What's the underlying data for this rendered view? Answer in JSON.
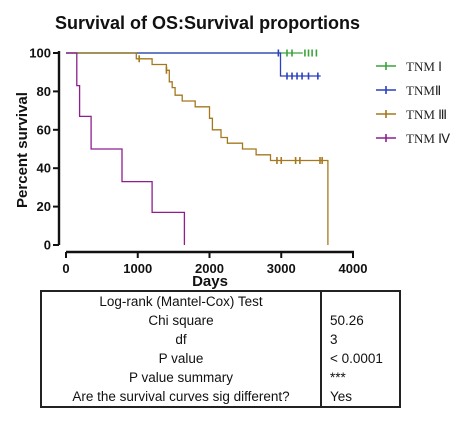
{
  "chart_data": {
    "type": "line",
    "title": "Survival of OS:Survival proportions",
    "xlabel": "Days",
    "ylabel": "Percent survival",
    "xlim": [
      0,
      4000
    ],
    "ylim": [
      0,
      100
    ],
    "x_ticks": [
      0,
      1000,
      2000,
      3000,
      4000
    ],
    "y_ticks": [
      0,
      20,
      40,
      60,
      80,
      100
    ],
    "grid": false,
    "legend_position": "right",
    "series": [
      {
        "name": "TNM Ⅰ",
        "color": "#3aa33a",
        "steps": [
          [
            0,
            100
          ],
          [
            3300,
            100
          ]
        ],
        "censored": [
          [
            3080,
            100
          ],
          [
            3150,
            100
          ],
          [
            3330,
            100
          ],
          [
            3380,
            100
          ],
          [
            3430,
            100
          ],
          [
            3490,
            100
          ]
        ]
      },
      {
        "name": "TNMⅡ",
        "color": "#2c3fbf",
        "steps": [
          [
            0,
            100
          ],
          [
            2990,
            100
          ],
          [
            2990,
            88
          ],
          [
            3550,
            88
          ]
        ],
        "censored": [
          [
            2960,
            100
          ],
          [
            3080,
            88
          ],
          [
            3150,
            88
          ],
          [
            3220,
            88
          ],
          [
            3290,
            88
          ],
          [
            3380,
            88
          ],
          [
            3510,
            88
          ]
        ]
      },
      {
        "name": "TNM Ⅲ",
        "color": "#a4781f",
        "steps": [
          [
            0,
            100
          ],
          [
            980,
            100
          ],
          [
            980,
            97
          ],
          [
            1200,
            97
          ],
          [
            1200,
            94
          ],
          [
            1400,
            94
          ],
          [
            1400,
            91
          ],
          [
            1440,
            91
          ],
          [
            1440,
            85
          ],
          [
            1480,
            85
          ],
          [
            1480,
            82
          ],
          [
            1520,
            82
          ],
          [
            1520,
            78
          ],
          [
            1620,
            78
          ],
          [
            1620,
            75
          ],
          [
            1800,
            75
          ],
          [
            1800,
            72
          ],
          [
            2000,
            72
          ],
          [
            2000,
            66
          ],
          [
            2040,
            66
          ],
          [
            2040,
            60
          ],
          [
            2160,
            60
          ],
          [
            2160,
            56
          ],
          [
            2250,
            56
          ],
          [
            2250,
            53
          ],
          [
            2460,
            53
          ],
          [
            2460,
            50
          ],
          [
            2650,
            50
          ],
          [
            2650,
            47
          ],
          [
            2850,
            47
          ],
          [
            2850,
            44
          ],
          [
            3650,
            44
          ],
          [
            3650,
            0
          ]
        ],
        "censored": [
          [
            1020,
            97
          ],
          [
            1400,
            91
          ],
          [
            2940,
            44
          ],
          [
            3000,
            44
          ],
          [
            3200,
            44
          ],
          [
            3260,
            44
          ],
          [
            3540,
            44
          ],
          [
            3570,
            44
          ]
        ]
      },
      {
        "name": "TNM Ⅳ",
        "color": "#8e1e8e",
        "steps": [
          [
            0,
            100
          ],
          [
            150,
            100
          ],
          [
            150,
            83
          ],
          [
            190,
            83
          ],
          [
            190,
            67
          ],
          [
            350,
            67
          ],
          [
            350,
            50
          ],
          [
            780,
            50
          ],
          [
            780,
            33
          ],
          [
            1200,
            33
          ],
          [
            1200,
            17
          ],
          [
            1650,
            17
          ],
          [
            1650,
            0
          ]
        ],
        "censored": []
      }
    ]
  },
  "stats_table": {
    "header": "Log-rank (Mantel-Cox) Test",
    "rows": [
      {
        "label": "Chi square",
        "value": "50.26"
      },
      {
        "label": "df",
        "value": "3"
      },
      {
        "label": "P value",
        "value": "< 0.0001"
      },
      {
        "label": "P value summary",
        "value": "***"
      },
      {
        "label": "Are the survival curves sig different?",
        "value": "Yes"
      }
    ]
  }
}
